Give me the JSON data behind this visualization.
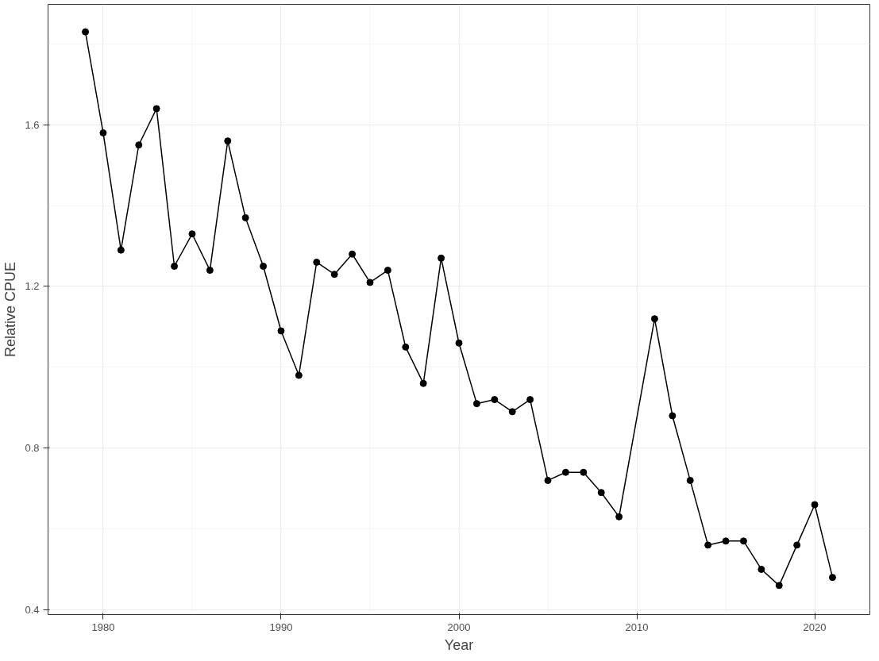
{
  "chart_data": {
    "type": "line",
    "xlabel": "Year",
    "ylabel": "Relative CPUE",
    "x": [
      1979,
      1980,
      1981,
      1982,
      1983,
      1984,
      1985,
      1986,
      1987,
      1988,
      1989,
      1990,
      1991,
      1992,
      1993,
      1994,
      1995,
      1996,
      1997,
      1998,
      1999,
      2000,
      2001,
      2002,
      2003,
      2004,
      2005,
      2006,
      2007,
      2008,
      2009,
      2011,
      2012,
      2013,
      2014,
      2015,
      2016,
      2017,
      2018,
      2019,
      2020,
      2021
    ],
    "series": [
      {
        "color": "#000000",
        "values": [
          1.83,
          1.58,
          1.29,
          1.55,
          1.64,
          1.25,
          1.33,
          1.24,
          1.56,
          1.37,
          1.25,
          1.09,
          0.98,
          1.26,
          1.23,
          1.28,
          1.21,
          1.24,
          1.05,
          0.96,
          1.27,
          1.06,
          0.91,
          0.92,
          0.89,
          0.92,
          0.72,
          0.74,
          0.74,
          0.69,
          0.63,
          1.12,
          0.88,
          0.72,
          0.56,
          0.57,
          0.57,
          0.5,
          0.46,
          0.56,
          0.66,
          0.48
        ]
      }
    ],
    "xlim": [
      1976.9,
      2023.1
    ],
    "ylim": [
      0.388,
      1.898
    ],
    "xticks": [
      1980,
      1990,
      2000,
      2010,
      2020
    ],
    "yticks": [
      0.4,
      0.8,
      1.2,
      1.6
    ],
    "grid": true,
    "marker": "circle",
    "line_style": "solid"
  }
}
